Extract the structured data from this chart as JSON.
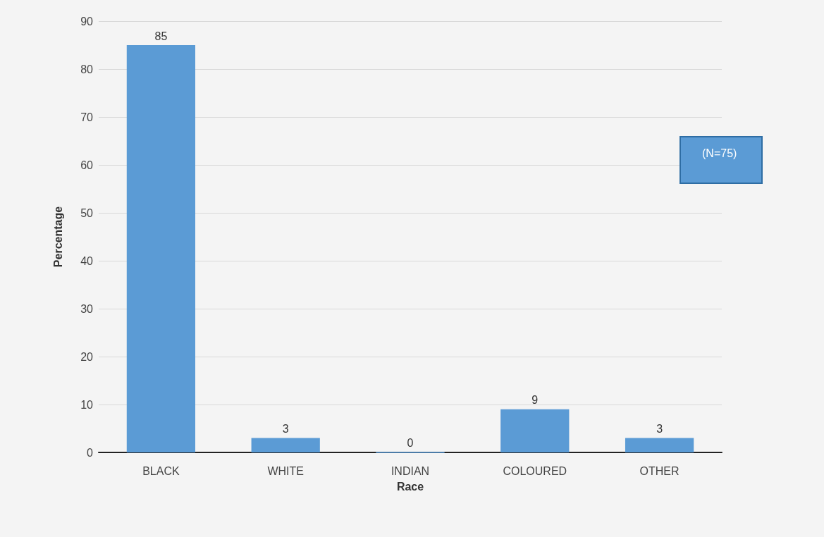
{
  "chart_data": {
    "type": "bar",
    "xlabel": "Race",
    "ylabel": "Percentage",
    "categories": [
      "BLACK",
      "WHITE",
      "INDIAN",
      "COLOURED",
      "OTHER"
    ],
    "values": [
      85,
      3,
      0,
      9,
      3
    ],
    "color": "#5b9bd5",
    "ylim": [
      0,
      90
    ],
    "yticks": [
      0,
      10,
      20,
      30,
      40,
      50,
      60,
      70,
      80,
      90
    ],
    "grid": "y",
    "data_labels": true,
    "annotations": [
      "(N=75)"
    ]
  }
}
